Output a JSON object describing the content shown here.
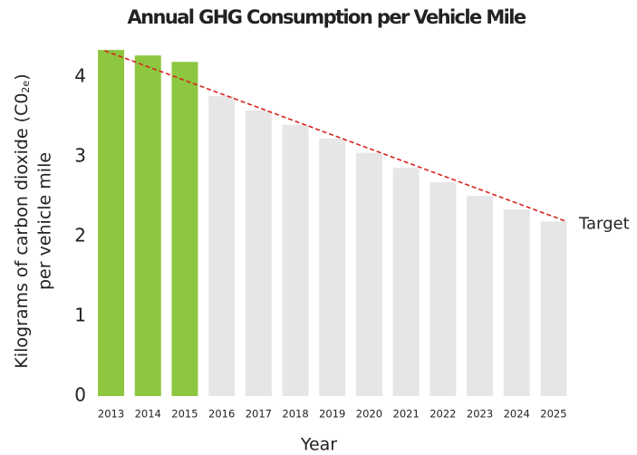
{
  "chart_data": {
    "type": "bar",
    "title": "Annual GHG Consumption per Vehicle Mile",
    "x_label": "Year",
    "y_label": {
      "line1": "Kilograms of carbon dioxide (C0",
      "subscript": "2e",
      "line1_end": ")",
      "line2": "per vehicle mile"
    },
    "categories": [
      "2013",
      "2014",
      "2015",
      "2016",
      "2017",
      "2018",
      "2019",
      "2020",
      "2021",
      "2022",
      "2023",
      "2024",
      "2025"
    ],
    "values": [
      4.34,
      4.27,
      4.19,
      3.76,
      3.58,
      3.4,
      3.23,
      3.05,
      2.86,
      2.68,
      2.51,
      2.34,
      2.19
    ],
    "colors": [
      "#8dc63f",
      "#8dc63f",
      "#8dc63f",
      "#e6e6e6",
      "#e6e6e6",
      "#e6e6e6",
      "#e6e6e6",
      "#e6e6e6",
      "#e6e6e6",
      "#e6e6e6",
      "#e6e6e6",
      "#e6e6e6",
      "#e6e6e6"
    ],
    "target": {
      "label": "Target",
      "color": "#d9231e",
      "values": [
        4.33,
        2.19
      ]
    },
    "ylim": [
      0,
      4.4
    ],
    "yticks": [
      0,
      1,
      2,
      3,
      4
    ],
    "grid": false
  }
}
